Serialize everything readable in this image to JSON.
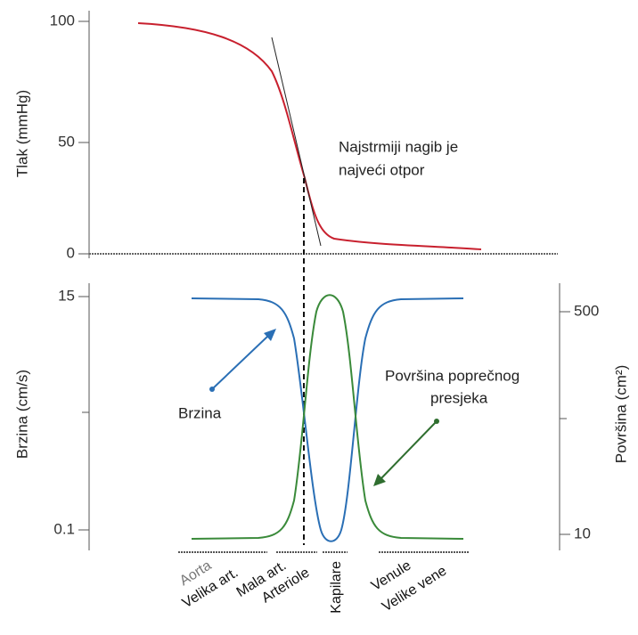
{
  "top": {
    "y_label": "Tlak (mmHg)",
    "yticks": [
      "100",
      "50",
      "0"
    ],
    "annotation": [
      "Najstrmiji nagib je",
      "najveći otpor"
    ]
  },
  "bottom": {
    "y_label": "Brzina (cm/s)",
    "yticks": [
      "15",
      "0.1"
    ],
    "y2_label": "Površina (cm²)",
    "y2ticks": [
      "500",
      "10"
    ],
    "annotations": {
      "velocity": "Brzina",
      "area": [
        "Površina poprečnog",
        "presjeka"
      ]
    }
  },
  "categories": [
    [
      "Aorta",
      "Velika art."
    ],
    [
      "Mala art.",
      "Arteriole"
    ],
    [
      "Kapilare"
    ],
    [
      "Venule",
      "Velike vene"
    ]
  ]
}
